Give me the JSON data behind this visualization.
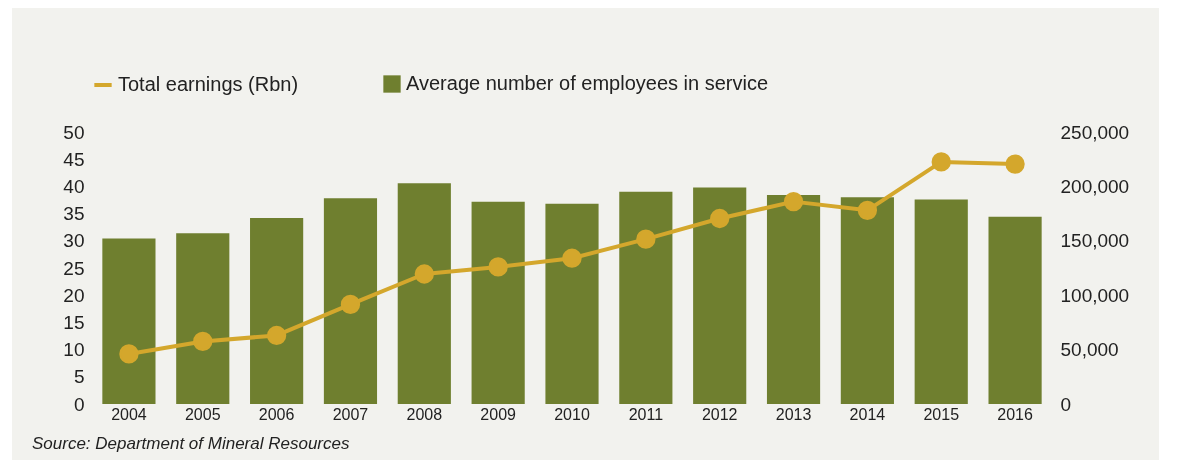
{
  "chart_data": {
    "type": "bar",
    "categories": [
      "2004",
      "2005",
      "2006",
      "2007",
      "2008",
      "2009",
      "2010",
      "2011",
      "2012",
      "2013",
      "2014",
      "2015",
      "2016"
    ],
    "series": [
      {
        "name": "Total earnings (Rbn)",
        "type": "line",
        "color": "#d4a72c",
        "values": [
          9.2,
          11.5,
          12.6,
          18.3,
          23.9,
          25.2,
          26.8,
          30.3,
          34.1,
          37.2,
          35.6,
          44.5,
          44.1
        ]
      },
      {
        "name": "Average number of employees in service",
        "axis": "y2",
        "color": "#6f7f2f",
        "values": [
          152000,
          157000,
          171000,
          189000,
          203000,
          186000,
          184000,
          195000,
          199000,
          192000,
          190000,
          188000,
          172000
        ]
      }
    ],
    "ylim": [
      0,
      50
    ],
    "yticks": [
      0,
      5,
      10,
      15,
      20,
      25,
      30,
      35,
      40,
      45,
      50
    ],
    "y2lim": [
      0,
      250000
    ],
    "y2ticks": [
      0,
      {
        "value": 50000,
        "label": "50,000"
      },
      {
        "value": 100000,
        "label": "100,000"
      },
      {
        "value": 150000,
        "label": "150,000"
      },
      {
        "value": 200000,
        "label": "200,000"
      },
      {
        "value": 250000,
        "label": "250,000"
      }
    ],
    "grid": false,
    "legend": "top left",
    "marker": "circle",
    "annotations": [
      "Source: Department of Mineral Resources"
    ]
  }
}
